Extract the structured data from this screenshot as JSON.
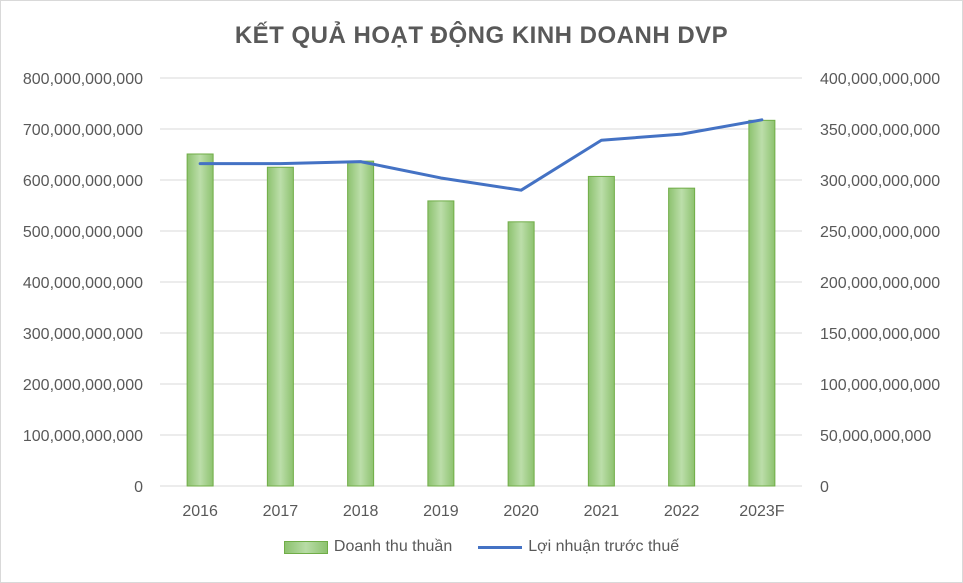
{
  "chart_data": {
    "type": "bar",
    "title": "KẾT QUẢ HOẠT ĐỘNG KINH DOANH DVP",
    "categories": [
      "2016",
      "2017",
      "2018",
      "2019",
      "2020",
      "2021",
      "2022",
      "2023F"
    ],
    "series": [
      {
        "name": "Doanh thu thuần",
        "type": "bar",
        "axis": "left",
        "color": "#a9d18e",
        "values": [
          651000000000,
          625000000000,
          637000000000,
          559000000000,
          518000000000,
          607000000000,
          584000000000,
          717000000000
        ]
      },
      {
        "name": "Lợi nhuận trước thuế",
        "type": "line",
        "axis": "right",
        "color": "#4472c4",
        "values": [
          316000000000,
          316000000000,
          318000000000,
          302000000000,
          290000000000,
          339000000000,
          345000000000,
          359000000000
        ]
      }
    ],
    "y_left": {
      "lim": [
        0,
        800000000000
      ],
      "ticks": [
        "0",
        "100,000,000,000",
        "200,000,000,000",
        "300,000,000,000",
        "400,000,000,000",
        "500,000,000,000",
        "600,000,000,000",
        "700,000,000,000",
        "800,000,000,000"
      ]
    },
    "y_right": {
      "lim": [
        0,
        400000000000
      ],
      "ticks": [
        "0",
        "50,000,000,000",
        "100,000,000,000",
        "150,000,000,000",
        "200,000,000,000",
        "250,000,000,000",
        "300,000,000,000",
        "350,000,000,000",
        "400,000,000,000"
      ]
    },
    "grid": true,
    "legend_position": "bottom"
  }
}
